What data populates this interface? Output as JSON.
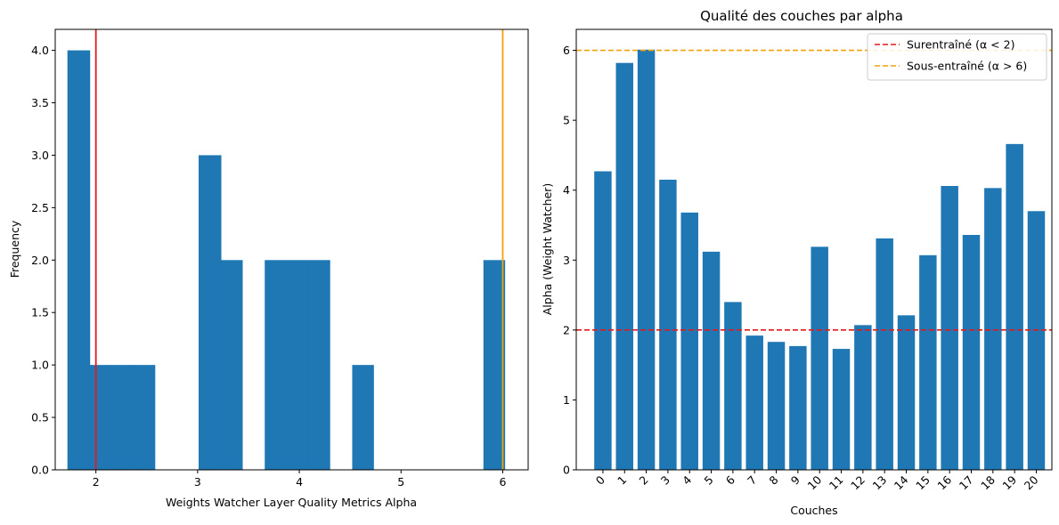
{
  "chart_data": [
    {
      "type": "bar",
      "subtype": "histogram",
      "title": "",
      "xlabel": "Weights Watcher Layer Quality Metrics Alpha",
      "ylabel": "Frequency",
      "xlim": [
        1.6,
        6.25
      ],
      "ylim": [
        0,
        4.2
      ],
      "xticks": [
        2,
        3,
        4,
        5,
        6
      ],
      "yticks": [
        0.0,
        0.5,
        1.0,
        1.5,
        2.0,
        2.5,
        3.0,
        3.5,
        4.0
      ],
      "xtick_labels": [
        "2",
        "3",
        "4",
        "5",
        "6"
      ],
      "ytick_labels": [
        "0.0",
        "0.5",
        "1.0",
        "1.5",
        "2.0",
        "2.5",
        "3.0",
        "3.5",
        "4.0"
      ],
      "bins": [
        {
          "start": 1.72,
          "end": 1.94,
          "count": 4
        },
        {
          "start": 1.94,
          "end": 2.15,
          "count": 1
        },
        {
          "start": 2.15,
          "end": 2.37,
          "count": 1
        },
        {
          "start": 2.37,
          "end": 2.58,
          "count": 1
        },
        {
          "start": 2.58,
          "end": 2.8,
          "count": 0
        },
        {
          "start": 2.8,
          "end": 3.01,
          "count": 0
        },
        {
          "start": 3.01,
          "end": 3.23,
          "count": 3
        },
        {
          "start": 3.23,
          "end": 3.44,
          "count": 2
        },
        {
          "start": 3.44,
          "end": 3.66,
          "count": 0
        },
        {
          "start": 3.66,
          "end": 3.87,
          "count": 2
        },
        {
          "start": 3.87,
          "end": 4.09,
          "count": 2
        },
        {
          "start": 4.09,
          "end": 4.3,
          "count": 2
        },
        {
          "start": 4.3,
          "end": 4.52,
          "count": 0
        },
        {
          "start": 4.52,
          "end": 4.73,
          "count": 1
        },
        {
          "start": 4.73,
          "end": 4.95,
          "count": 0
        },
        {
          "start": 4.95,
          "end": 5.16,
          "count": 0
        },
        {
          "start": 5.16,
          "end": 5.38,
          "count": 0
        },
        {
          "start": 5.38,
          "end": 5.59,
          "count": 0
        },
        {
          "start": 5.59,
          "end": 5.81,
          "count": 0
        },
        {
          "start": 5.81,
          "end": 6.02,
          "count": 2
        }
      ],
      "vlines": [
        {
          "x": 2,
          "color": "#e41a1c"
        },
        {
          "x": 6,
          "color": "#f0a30a"
        }
      ],
      "bar_color": "#1f77b4"
    },
    {
      "type": "bar",
      "title": "Qualité des couches par alpha",
      "xlabel": "Couches",
      "ylabel": "Alpha (Weight Watcher)",
      "ylim": [
        0,
        6.3
      ],
      "yticks": [
        0,
        1,
        2,
        3,
        4,
        5,
        6
      ],
      "ytick_labels": [
        "0",
        "1",
        "2",
        "3",
        "4",
        "5",
        "6"
      ],
      "categories": [
        "0",
        "1",
        "2",
        "3",
        "4",
        "5",
        "6",
        "7",
        "8",
        "9",
        "10",
        "11",
        "12",
        "13",
        "14",
        "15",
        "16",
        "17",
        "18",
        "19",
        "20"
      ],
      "values": [
        4.27,
        5.82,
        6.01,
        4.15,
        3.68,
        3.12,
        2.4,
        1.92,
        1.83,
        1.77,
        3.19,
        1.73,
        2.07,
        3.31,
        2.21,
        3.07,
        4.06,
        3.36,
        4.03,
        4.66,
        3.7
      ],
      "bar_color": "#1f77b4",
      "hlines": [
        {
          "y": 2,
          "color": "#e41a1c",
          "style": "dashed",
          "label": "Surentraîné (α < 2)"
        },
        {
          "y": 6,
          "color": "#f0a30a",
          "style": "dashed",
          "label": "Sous-entraîné (α > 6)"
        }
      ],
      "legend_position": "top-right"
    }
  ]
}
